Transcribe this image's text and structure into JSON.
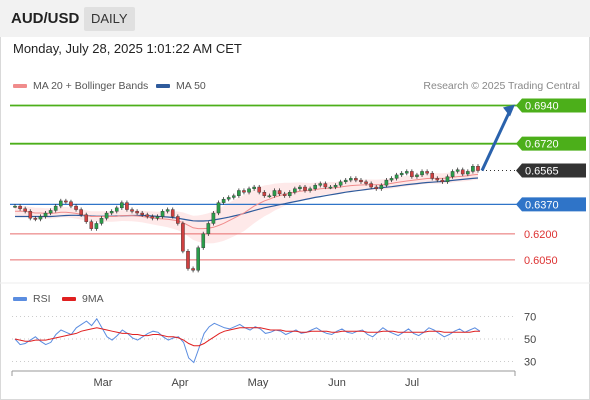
{
  "header": {
    "symbol": "AUD/USD",
    "timeframe": "DAILY"
  },
  "datetime": "Monday, July 28, 2025 1:01:22 AM CET",
  "legend": {
    "ma20": "MA 20 + Bollinger Bands",
    "ma50": "MA 50",
    "credit": "Research © 2025 Trading Central"
  },
  "rsi_legend": {
    "rsi": "RSI",
    "ma9": "9MA"
  },
  "colors": {
    "target": "#4caf1a",
    "current": "#333333",
    "support_blue": "#2f74c8",
    "support_red": "#e86c6c",
    "arrow": "#2a62ac",
    "ma20": "#f08c8c",
    "ma50": "#2f5b9c",
    "bands": "#fde2e2",
    "rsi": "#5b8de0",
    "rsi_ma": "#e02020"
  },
  "chart_data": {
    "type": "candlestick",
    "title": "AUD/USD",
    "timeframe": "DAILY",
    "ylim": [
      0.5905,
      0.6995
    ],
    "x_labels": [
      "Mar",
      "Apr",
      "May",
      "Jun",
      "Jul"
    ],
    "levels": [
      {
        "value": 0.694,
        "label": "0.6940",
        "kind": "target"
      },
      {
        "value": 0.672,
        "label": "0.6720",
        "kind": "target"
      },
      {
        "value": 0.6565,
        "label": "0.6565",
        "kind": "current"
      },
      {
        "value": 0.637,
        "label": "0.6370",
        "kind": "support_blue"
      },
      {
        "value": 0.62,
        "label": "0.6200",
        "kind": "support_red"
      },
      {
        "value": 0.605,
        "label": "0.6050",
        "kind": "support_red"
      }
    ],
    "close_path": [
      0.636,
      0.6345,
      0.633,
      0.629,
      0.6285,
      0.63,
      0.632,
      0.6335,
      0.636,
      0.639,
      0.6385,
      0.636,
      0.634,
      0.631,
      0.627,
      0.623,
      0.626,
      0.629,
      0.632,
      0.633,
      0.635,
      0.638,
      0.634,
      0.633,
      0.632,
      0.631,
      0.63,
      0.629,
      0.63,
      0.633,
      0.634,
      0.63,
      0.626,
      0.61,
      0.6,
      0.599,
      0.612,
      0.62,
      0.626,
      0.632,
      0.638,
      0.64,
      0.641,
      0.642,
      0.645,
      0.644,
      0.646,
      0.647,
      0.644,
      0.642,
      0.642,
      0.645,
      0.643,
      0.642,
      0.644,
      0.646,
      0.647,
      0.645,
      0.646,
      0.648,
      0.649,
      0.647,
      0.647,
      0.648,
      0.65,
      0.651,
      0.652,
      0.651,
      0.65,
      0.649,
      0.647,
      0.646,
      0.648,
      0.651,
      0.652,
      0.654,
      0.655,
      0.656,
      0.653,
      0.654,
      0.656,
      0.655,
      0.652,
      0.651,
      0.65,
      0.653,
      0.656,
      0.657,
      0.6545,
      0.656,
      0.659,
      0.6565
    ],
    "ma20_path": [
      0.633,
      0.633,
      0.633,
      0.6325,
      0.632,
      0.632,
      0.6318,
      0.6318,
      0.632,
      0.6325,
      0.6325,
      0.6322,
      0.6318,
      0.6312,
      0.6305,
      0.63,
      0.63,
      0.63,
      0.63,
      0.63,
      0.6302,
      0.6305,
      0.6305,
      0.6305,
      0.6303,
      0.63,
      0.6296,
      0.6292,
      0.6288,
      0.6286,
      0.6284,
      0.628,
      0.6275,
      0.6265,
      0.625,
      0.6235,
      0.623,
      0.623,
      0.6232,
      0.6238,
      0.6248,
      0.626,
      0.6275,
      0.629,
      0.6305,
      0.632,
      0.634,
      0.636,
      0.6375,
      0.639,
      0.64,
      0.6412,
      0.642,
      0.6428,
      0.6434,
      0.644,
      0.6446,
      0.6448,
      0.645,
      0.6455,
      0.646,
      0.6462,
      0.6464,
      0.6466,
      0.647,
      0.6474,
      0.6478,
      0.648,
      0.6482,
      0.6483,
      0.6483,
      0.6483,
      0.6484,
      0.6487,
      0.6491,
      0.6496,
      0.65,
      0.6505,
      0.6508,
      0.6512,
      0.6516,
      0.6519,
      0.652,
      0.652,
      0.652,
      0.6522,
      0.6526,
      0.653,
      0.6532,
      0.6535,
      0.654,
      0.6543
    ],
    "ma50_path": [
      0.63,
      0.63,
      0.63,
      0.63,
      0.63,
      0.63,
      0.63,
      0.63,
      0.6302,
      0.6304,
      0.6306,
      0.6307,
      0.6307,
      0.6306,
      0.6305,
      0.6303,
      0.6302,
      0.6302,
      0.6302,
      0.6302,
      0.6303,
      0.6304,
      0.6305,
      0.6306,
      0.6306,
      0.6306,
      0.6305,
      0.6303,
      0.6301,
      0.6299,
      0.6297,
      0.6294,
      0.629,
      0.6285,
      0.628,
      0.6275,
      0.6274,
      0.6274,
      0.6276,
      0.628,
      0.6285,
      0.629,
      0.6296,
      0.6303,
      0.631,
      0.6318,
      0.6326,
      0.6334,
      0.6342,
      0.635,
      0.6356,
      0.6362,
      0.6368,
      0.6374,
      0.638,
      0.6386,
      0.6392,
      0.6398,
      0.6404,
      0.641,
      0.6415,
      0.642,
      0.6425,
      0.643,
      0.6435,
      0.644,
      0.6444,
      0.6448,
      0.6452,
      0.6456,
      0.646,
      0.6463,
      0.6466,
      0.6469,
      0.6472,
      0.6476,
      0.648,
      0.6484,
      0.6487,
      0.649,
      0.6493,
      0.6496,
      0.6498,
      0.65,
      0.6502,
      0.6505,
      0.6508,
      0.6511,
      0.6514,
      0.6517,
      0.652,
      0.6522
    ],
    "forecast": {
      "from": 0.6565,
      "to": 0.694
    },
    "rsi": {
      "ylim": [
        25,
        75
      ],
      "ticks": [
        70,
        50,
        30
      ],
      "rsi_path": [
        50,
        45,
        46,
        49,
        52,
        48,
        45,
        47,
        54,
        58,
        56,
        54,
        60,
        63,
        66,
        62,
        68,
        60,
        52,
        49,
        53,
        58,
        55,
        51,
        49,
        52,
        55,
        57,
        56,
        52,
        49,
        51,
        52,
        47,
        33,
        29,
        42,
        55,
        61,
        64,
        62,
        60,
        59,
        61,
        63,
        60,
        58,
        61,
        59,
        55,
        56,
        58,
        57,
        54,
        56,
        58,
        55,
        56,
        58,
        60,
        57,
        55,
        54,
        57,
        59,
        56,
        55,
        57,
        58,
        54,
        52,
        56,
        60,
        57,
        55,
        53,
        56,
        59,
        55,
        53,
        56,
        60,
        58,
        55,
        52,
        54,
        57,
        59,
        56,
        58,
        60,
        57
      ],
      "ma_path": [
        50,
        49,
        48,
        48,
        49,
        49,
        49,
        50,
        51,
        52,
        53,
        54,
        55,
        57,
        58,
        59,
        60,
        59,
        58,
        57,
        56,
        55,
        55,
        54,
        54,
        53,
        53,
        54,
        54,
        53,
        52,
        52,
        51,
        49,
        46,
        44,
        44,
        46,
        49,
        52,
        55,
        57,
        58,
        59,
        60,
        60,
        60,
        60,
        60,
        59,
        58,
        58,
        58,
        57,
        57,
        57,
        56,
        56,
        57,
        57,
        57,
        57,
        56,
        56,
        57,
        57,
        57,
        57,
        57,
        56,
        56,
        56,
        57,
        57,
        57,
        56,
        56,
        56,
        56,
        56,
        56,
        57,
        57,
        57,
        56,
        56,
        56,
        56,
        56,
        56,
        57,
        57
      ]
    }
  }
}
